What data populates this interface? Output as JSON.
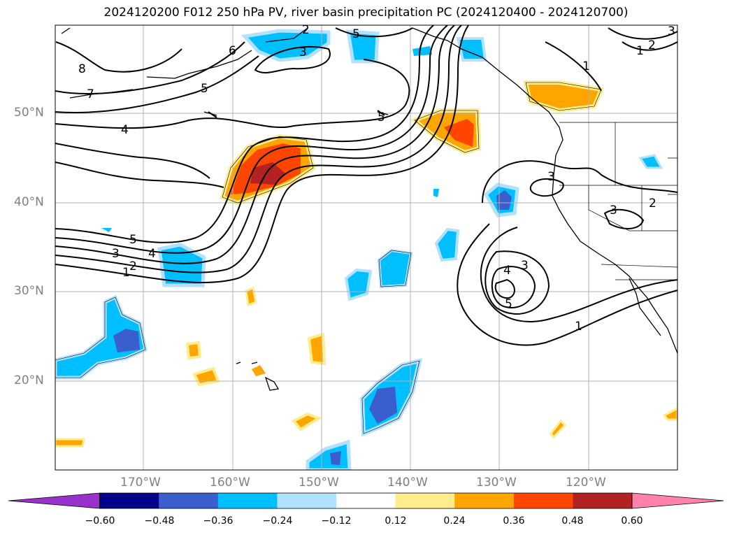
{
  "title": "2024120200 F012 250 hPa PV, river basin precipitation PC (2024120400 - 2024120700)",
  "lat_labels": [
    "50°N",
    "40°N",
    "30°N",
    "20°N"
  ],
  "lon_labels": [
    "170°W",
    "160°W",
    "150°W",
    "140°W",
    "130°W",
    "120°W"
  ],
  "colorbar": {
    "ticks": [
      "−0.60",
      "−0.48",
      "−0.36",
      "−0.24",
      "−0.12",
      "0.12",
      "0.24",
      "0.36",
      "0.48",
      "0.60"
    ],
    "colors": [
      "#9932cc",
      "#00008b",
      "#3a5fcd",
      "#00bfff",
      "#b0e2ff",
      "#ffffff",
      "#ffec8b",
      "#ffa500",
      "#ff4500",
      "#b22222",
      "#ff82ab"
    ]
  },
  "contour_labels": [
    "8",
    "7",
    "6",
    "5",
    "4",
    "5",
    "3",
    "2",
    "5",
    "5",
    "4",
    "3",
    "2",
    "1",
    "3",
    "3",
    "3",
    "4",
    "5",
    "1",
    "2",
    "2",
    "1",
    "1",
    "3"
  ]
}
